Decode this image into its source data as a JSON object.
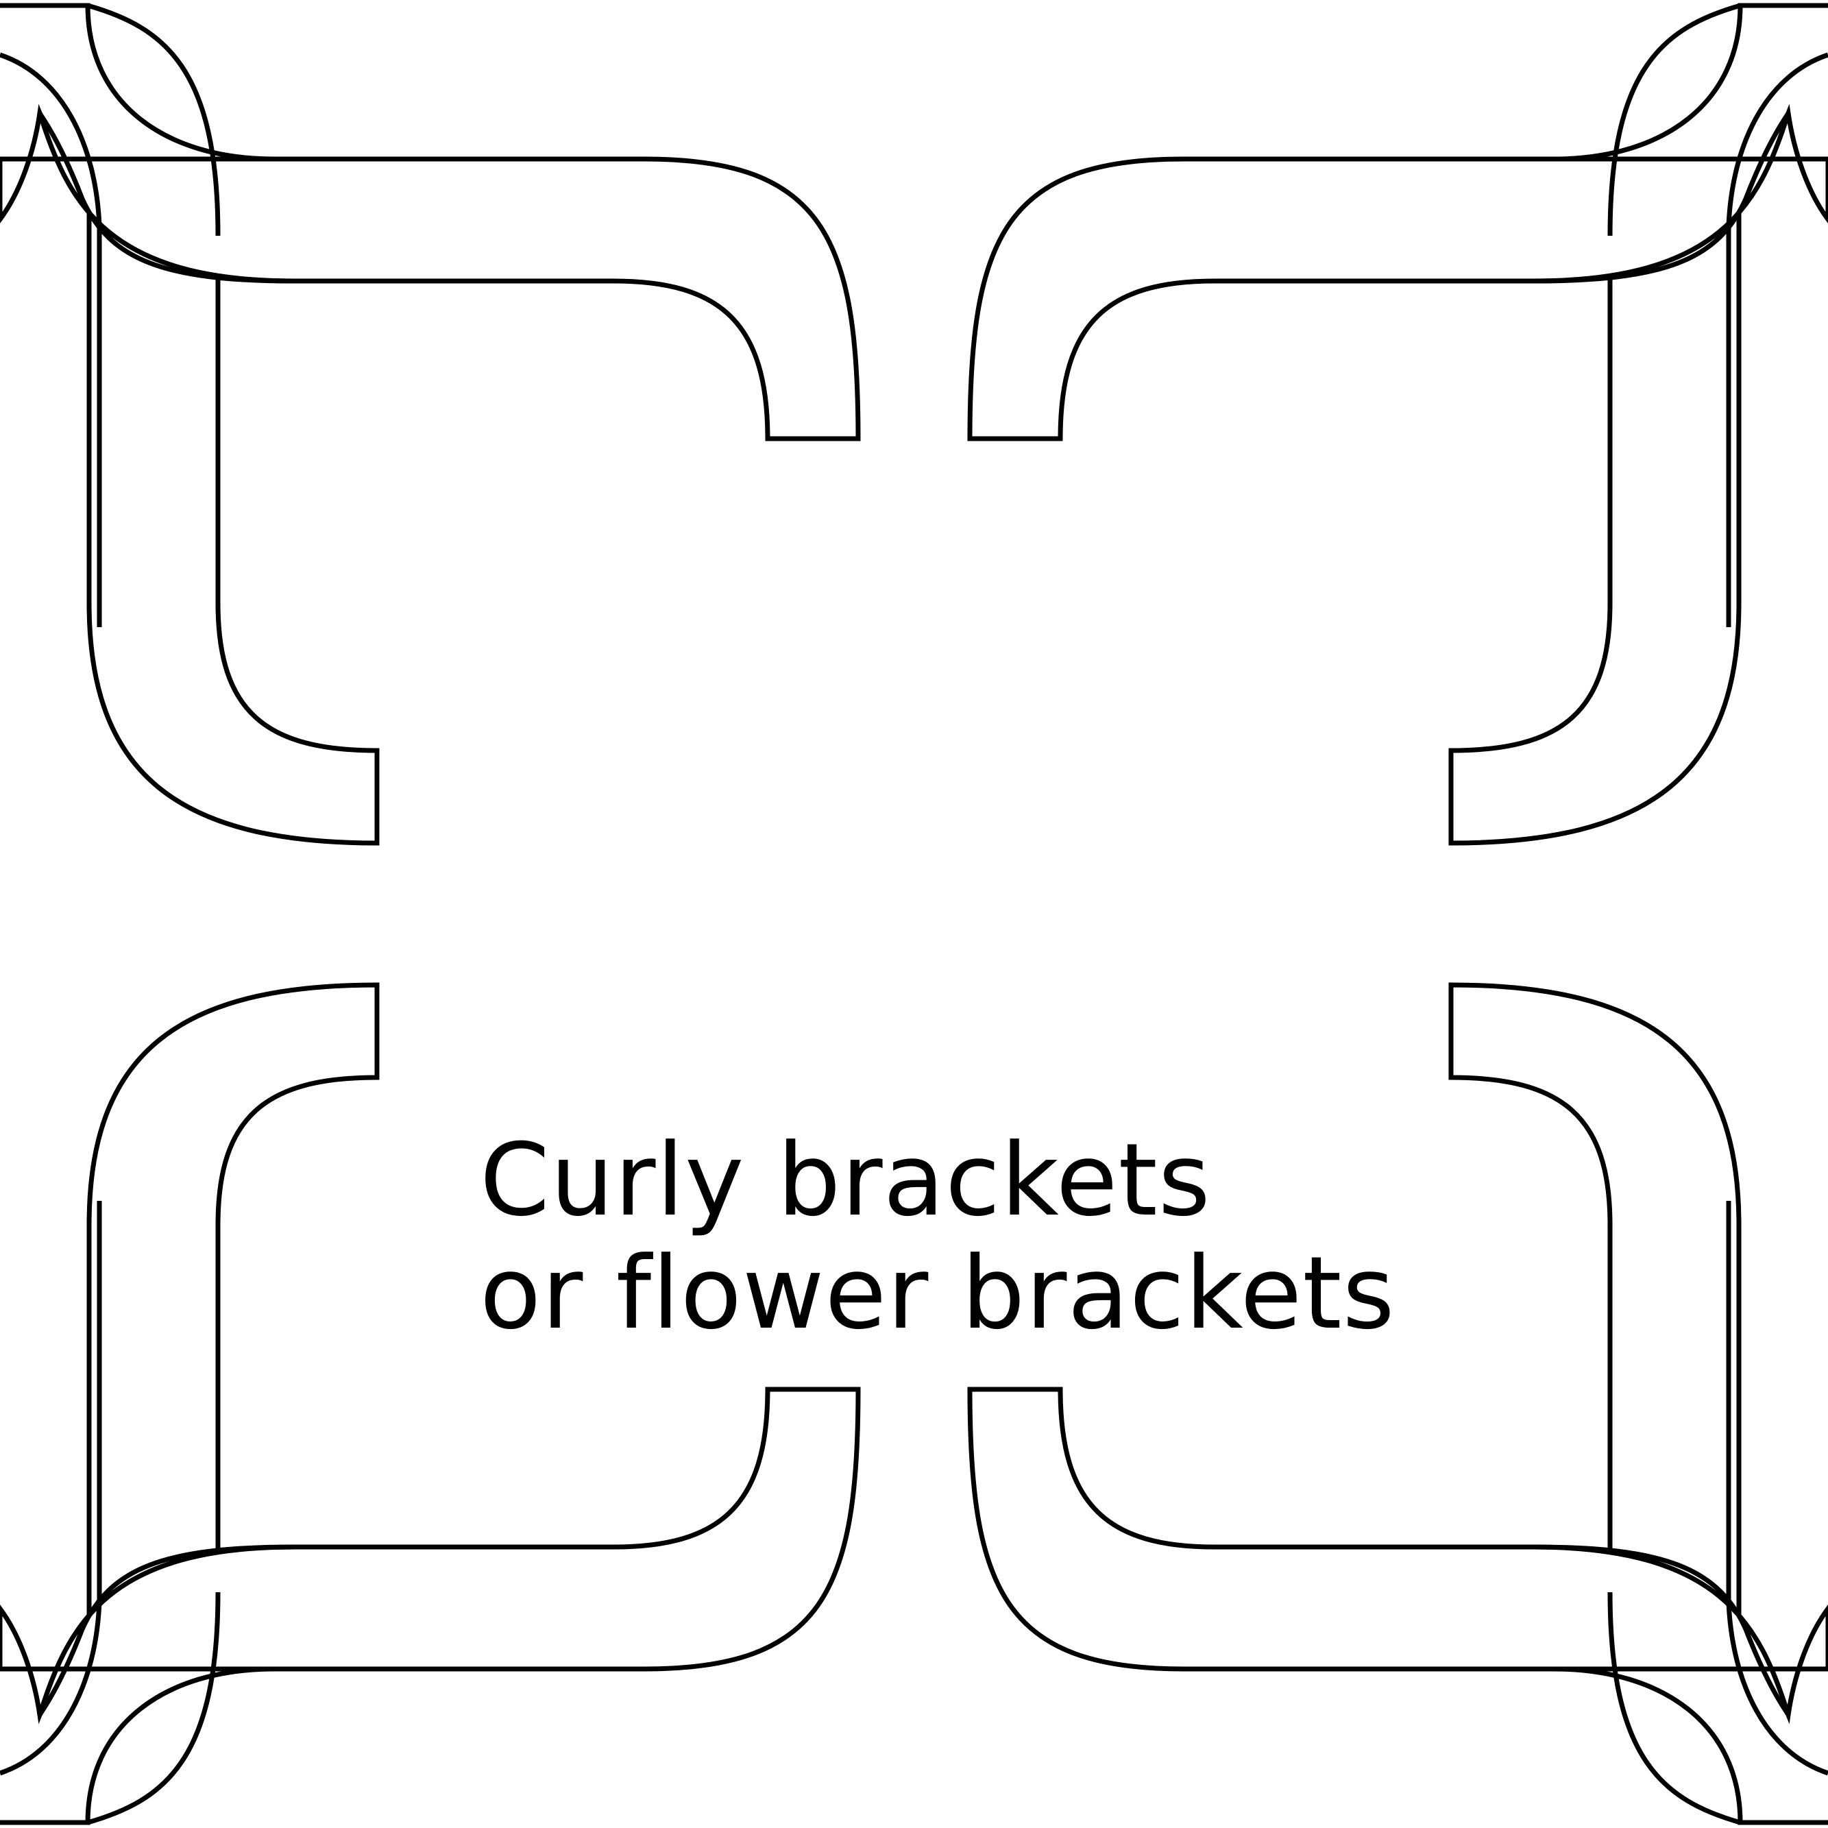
{
  "title": {
    "line1": "Curly brackets",
    "line2": "or flower brackets"
  },
  "colors": {
    "background": "#ffffff",
    "stroke": "#000000"
  }
}
